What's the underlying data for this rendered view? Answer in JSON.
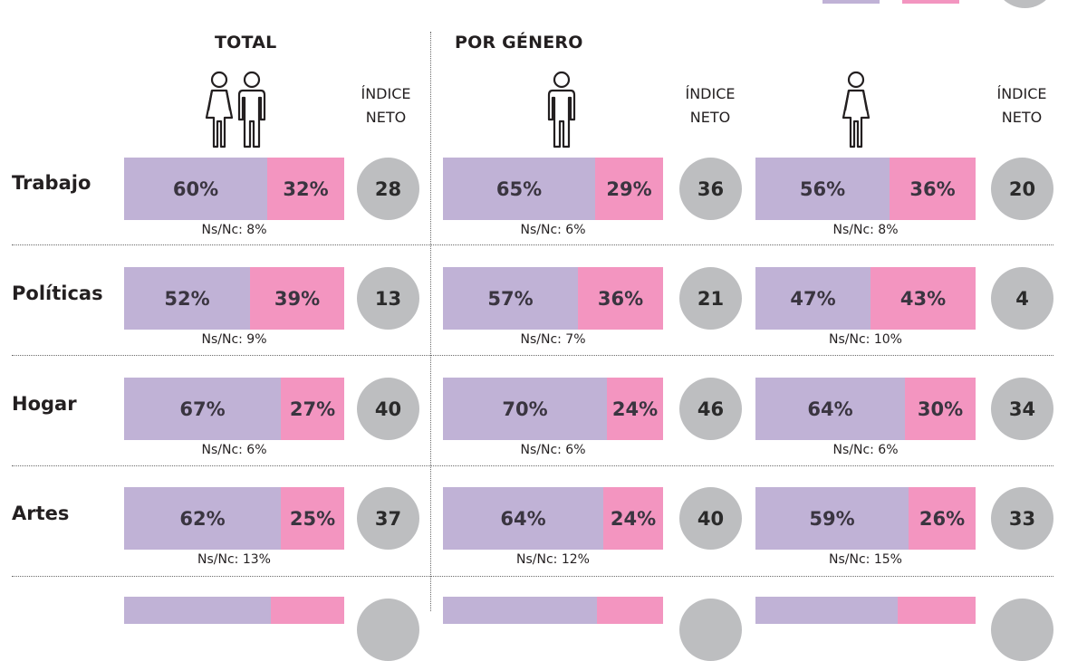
{
  "colors": {
    "positive": "#c0b2d6",
    "negative": "#f395c0",
    "index_circle": "#bdbec0"
  },
  "headers": {
    "total": "TOTAL",
    "por_genero": "POR GÉNERO"
  },
  "index_label": {
    "line1": "ÍNDICE",
    "line2": "NETO"
  },
  "icons": {
    "total": "man-and-woman-icon",
    "group2": "man-icon",
    "group3": "woman-icon"
  },
  "chart_data": {
    "type": "bar",
    "stacked": true,
    "groups": [
      "Total",
      "Hombre",
      "Mujer"
    ],
    "categories": [
      "Trabajo",
      "Políticas",
      "Hogar",
      "Artes"
    ],
    "series_names": [
      "positive",
      "negative"
    ],
    "rows": [
      {
        "category": "Trabajo",
        "groups": [
          {
            "pos": 60,
            "neg": 32,
            "pos_label": "60%",
            "neg_label": "32%",
            "index": "28",
            "nsnc": "Ns/Nc: 8%"
          },
          {
            "pos": 65,
            "neg": 29,
            "pos_label": "65%",
            "neg_label": "29%",
            "index": "36",
            "nsnc": "Ns/Nc: 6%"
          },
          {
            "pos": 56,
            "neg": 36,
            "pos_label": "56%",
            "neg_label": "36%",
            "index": "20",
            "nsnc": "Ns/Nc: 8%"
          }
        ]
      },
      {
        "category": "Políticas",
        "groups": [
          {
            "pos": 52,
            "neg": 39,
            "pos_label": "52%",
            "neg_label": "39%",
            "index": "13",
            "nsnc": "Ns/Nc: 9%"
          },
          {
            "pos": 57,
            "neg": 36,
            "pos_label": "57%",
            "neg_label": "36%",
            "index": "21",
            "nsnc": "Ns/Nc: 7%"
          },
          {
            "pos": 47,
            "neg": 43,
            "pos_label": "47%",
            "neg_label": "43%",
            "index": "4",
            "nsnc": "Ns/Nc: 10%"
          }
        ]
      },
      {
        "category": "Hogar",
        "groups": [
          {
            "pos": 67,
            "neg": 27,
            "pos_label": "67%",
            "neg_label": "27%",
            "index": "40",
            "nsnc": "Ns/Nc: 6%"
          },
          {
            "pos": 70,
            "neg": 24,
            "pos_label": "70%",
            "neg_label": "24%",
            "index": "46",
            "nsnc": "Ns/Nc: 6%"
          },
          {
            "pos": 64,
            "neg": 30,
            "pos_label": "64%",
            "neg_label": "30%",
            "index": "34",
            "nsnc": "Ns/Nc: 6%"
          }
        ]
      },
      {
        "category": "Artes",
        "groups": [
          {
            "pos": 62,
            "neg": 25,
            "pos_label": "62%",
            "neg_label": "25%",
            "index": "37",
            "nsnc": "Ns/Nc: 13%"
          },
          {
            "pos": 64,
            "neg": 24,
            "pos_label": "64%",
            "neg_label": "24%",
            "index": "40",
            "nsnc": "Ns/Nc: 12%"
          },
          {
            "pos": 59,
            "neg": 26,
            "pos_label": "59%",
            "neg_label": "26%",
            "index": "33",
            "nsnc": "Ns/Nc: 15%"
          }
        ]
      }
    ],
    "partial_row": {
      "groups": [
        {
          "pos": 63
        },
        {
          "pos": 66
        },
        {
          "pos": 61
        }
      ]
    }
  }
}
